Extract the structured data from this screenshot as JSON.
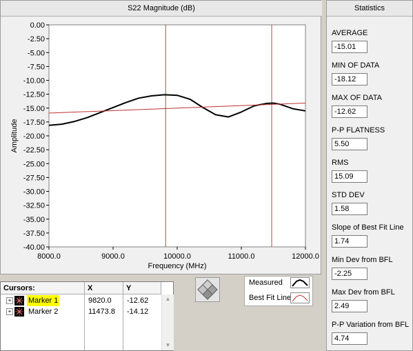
{
  "graph": {
    "title": "S22 Magnitude (dB)",
    "xlabel": "Frequency (MHz)",
    "ylabel": "Amplitude"
  },
  "chart_data": {
    "type": "line",
    "title": "S22 Magnitude (dB)",
    "xlabel": "Frequency (MHz)",
    "ylabel": "Amplitude",
    "xlim": [
      8000,
      12000
    ],
    "ylim": [
      -40,
      0
    ],
    "xticks": [
      "8000.0",
      "9000.0",
      "10000.0",
      "11000.0",
      "12000.0"
    ],
    "yticks": [
      "0.00",
      "-2.50",
      "-5.00",
      "-7.50",
      "-10.00",
      "-12.50",
      "-15.00",
      "-17.50",
      "-20.00",
      "-22.50",
      "-25.00",
      "-27.50",
      "-30.00",
      "-32.50",
      "-35.00",
      "-37.50",
      "-40.00"
    ],
    "grid": false,
    "legend": "bottom-right",
    "series": [
      {
        "name": "Measured",
        "color": "#000000",
        "x": [
          8000,
          8200,
          8400,
          8600,
          8800,
          9000,
          9200,
          9400,
          9600,
          9800,
          10000,
          10200,
          10400,
          10600,
          10800,
          11000,
          11200,
          11400,
          11500,
          11600,
          11800,
          12000
        ],
        "y": [
          -18.1,
          -17.9,
          -17.4,
          -16.7,
          -15.8,
          -14.9,
          -14.0,
          -13.2,
          -12.8,
          -12.6,
          -12.7,
          -13.4,
          -14.9,
          -16.2,
          -16.6,
          -15.7,
          -14.6,
          -14.15,
          -14.1,
          -14.3,
          -15.1,
          -15.5
        ]
      },
      {
        "name": "Best Fit Line",
        "color": "#c03030",
        "x": [
          8000,
          12000
        ],
        "y": [
          -15.9,
          -14.1
        ]
      }
    ],
    "cursors": [
      {
        "name": "Marker 1",
        "x": 9820.0,
        "color": "#c04040"
      },
      {
        "name": "Marker 2",
        "x": 11473.8,
        "color": "#c04040"
      }
    ]
  },
  "cursors_table": {
    "header": {
      "name": "Cursors:",
      "x": "X",
      "y": "Y"
    },
    "rows": [
      {
        "name": "Marker 1",
        "x": "9820.0",
        "y": "-12.62",
        "highlight": "#ffff00"
      },
      {
        "name": "Marker 2",
        "x": "11473.8",
        "y": "-14.12"
      }
    ]
  },
  "legend": {
    "items": [
      {
        "label": "Measured",
        "color": "#000000"
      },
      {
        "label": "Best Fit Line",
        "color": "#c03030"
      }
    ]
  },
  "stats": {
    "title": "Statistics",
    "items": [
      {
        "label": "AVERAGE",
        "value": "-15.01"
      },
      {
        "label": "MIN OF DATA",
        "value": "-18.12"
      },
      {
        "label": "MAX OF DATA",
        "value": "-12.62"
      },
      {
        "label": "P-P FLATNESS",
        "value": "5.50"
      },
      {
        "label": "RMS",
        "value": "15.09"
      },
      {
        "label": "STD DEV",
        "value": "1.58"
      },
      {
        "label": "Slope of Best Fit Line",
        "value": "1.74"
      },
      {
        "label": "Min Dev from BFL",
        "value": "-2.25"
      },
      {
        "label": "Max Dev from BFL",
        "value": "2.49"
      },
      {
        "label": "P-P Variation from BFL",
        "value": "4.74"
      }
    ]
  }
}
